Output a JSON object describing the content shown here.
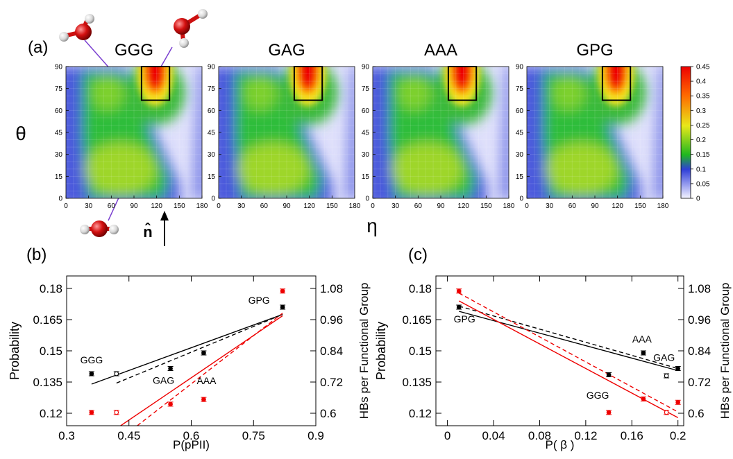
{
  "figure": {
    "panel_labels": [
      "(a)",
      "(b)",
      "(c)"
    ],
    "shared_y_label": "θ",
    "shared_x_label": "η",
    "vector_label": "n̂",
    "colormap_colors": [
      "#f4f4ff",
      "#2f3fd6",
      "#1fb81f",
      "#e8e81a",
      "#ff6a00",
      "#ee0000"
    ]
  },
  "chart_data": [
    {
      "type": "heatmap",
      "panel": "(a)",
      "title": "GGG",
      "x_ticks": [
        "0",
        "30",
        "60",
        "90",
        "120",
        "150",
        "180"
      ],
      "y_ticks": [
        "0",
        "15",
        "30",
        "45",
        "60",
        "75",
        "90"
      ],
      "xlim": [
        0,
        180
      ],
      "ylim": [
        0,
        90
      ],
      "highlight_box": {
        "x": [
          100,
          137
        ],
        "y": [
          67,
          90
        ]
      },
      "peak": {
        "x": 118,
        "y": 87,
        "value": 0.45
      }
    },
    {
      "type": "heatmap",
      "panel": "(a)",
      "title": "GAG",
      "x_ticks": [
        "0",
        "30",
        "60",
        "90",
        "120",
        "150",
        "180"
      ],
      "y_ticks": [
        "0",
        "15",
        "30",
        "45",
        "60",
        "75",
        "90"
      ],
      "xlim": [
        0,
        180
      ],
      "ylim": [
        0,
        90
      ],
      "highlight_box": {
        "x": [
          100,
          137
        ],
        "y": [
          67,
          90
        ]
      },
      "peak": {
        "x": 118,
        "y": 87,
        "value": 0.45
      }
    },
    {
      "type": "heatmap",
      "panel": "(a)",
      "title": "AAA",
      "x_ticks": [
        "0",
        "30",
        "60",
        "90",
        "120",
        "150",
        "180"
      ],
      "y_ticks": [
        "0",
        "15",
        "30",
        "45",
        "60",
        "75",
        "90"
      ],
      "xlim": [
        0,
        180
      ],
      "ylim": [
        0,
        90
      ],
      "highlight_box": {
        "x": [
          100,
          137
        ],
        "y": [
          67,
          90
        ]
      },
      "peak": {
        "x": 118,
        "y": 87,
        "value": 0.45
      }
    },
    {
      "type": "heatmap",
      "panel": "(a)",
      "title": "GPG",
      "x_ticks": [
        "0",
        "30",
        "60",
        "90",
        "120",
        "150",
        "180"
      ],
      "y_ticks": [
        "0",
        "15",
        "30",
        "45",
        "60",
        "75",
        "90"
      ],
      "xlim": [
        0,
        180
      ],
      "ylim": [
        0,
        90
      ],
      "highlight_box": {
        "x": [
          100,
          137
        ],
        "y": [
          67,
          90
        ]
      },
      "peak": {
        "x": 118,
        "y": 87,
        "value": 0.45
      }
    },
    {
      "type": "colorbar",
      "ticks": [
        "0",
        "0.05",
        "0.1",
        "0.15",
        "0.2",
        "0.25",
        "0.3",
        "0.35",
        "0.4",
        "0.45"
      ],
      "range": [
        0,
        0.45
      ]
    },
    {
      "type": "scatter",
      "panel": "(b)",
      "xlabel": "P(pPII)",
      "ylabel": "Probability",
      "y2label": "HBs per Functional Group",
      "xlim": [
        0.3,
        0.9
      ],
      "ylim": [
        0.114,
        0.186
      ],
      "y2lim": [
        0.552,
        1.128
      ],
      "x_ticks": [
        "0.3",
        "0.45",
        "0.6",
        "0.75",
        "0.9"
      ],
      "y_ticks": [
        "0.12",
        "0.135",
        "0.15",
        "0.165",
        "0.18"
      ],
      "y2_ticks": [
        "0.6",
        "0.72",
        "0.84",
        "0.96",
        "1.08"
      ],
      "series": [
        {
          "axis": "left",
          "color": "#000000",
          "filled": true,
          "points": [
            {
              "x": 0.36,
              "y": 0.139,
              "label": "GGG"
            },
            {
              "x": 0.55,
              "y": 0.1415,
              "label": "GAG"
            },
            {
              "x": 0.63,
              "y": 0.149,
              "label": ""
            },
            {
              "x": 0.82,
              "y": 0.171,
              "label": "GPG"
            }
          ]
        },
        {
          "axis": "left",
          "color": "#000000",
          "filled": false,
          "points": [
            {
              "x": 0.42,
              "y": 0.139
            }
          ]
        },
        {
          "axis": "right",
          "color": "#ee0000",
          "filled": true,
          "points": [
            {
              "x": 0.36,
              "y": 0.603
            },
            {
              "x": 0.55,
              "y": 0.635
            },
            {
              "x": 0.63,
              "y": 0.653,
              "label": "AAA"
            },
            {
              "x": 0.82,
              "y": 1.07
            }
          ]
        },
        {
          "axis": "right",
          "color": "#ee0000",
          "filled": false,
          "points": [
            {
              "x": 0.42,
              "y": 0.603
            }
          ]
        }
      ],
      "fit_lines": [
        {
          "axis": "left",
          "color": "#000000",
          "dash": false,
          "x": [
            0.36,
            0.82
          ],
          "y": [
            0.134,
            0.1675
          ]
        },
        {
          "axis": "left",
          "color": "#000000",
          "dash": true,
          "x": [
            0.42,
            0.82
          ],
          "y": [
            0.1345,
            0.1675
          ]
        },
        {
          "axis": "right",
          "color": "#ee0000",
          "dash": false,
          "x": [
            0.43,
            0.82
          ],
          "y": [
            0.552,
            0.975
          ]
        },
        {
          "axis": "right",
          "color": "#ee0000",
          "dash": true,
          "x": [
            0.47,
            0.82
          ],
          "y": [
            0.552,
            0.985
          ]
        }
      ]
    },
    {
      "type": "scatter",
      "panel": "(c)",
      "xlabel": "P( β )",
      "ylabel": "Probability",
      "y2label": "HBs per Functional Group",
      "xlim": [
        -0.01,
        0.205
      ],
      "ylim": [
        0.114,
        0.186
      ],
      "y2lim": [
        0.552,
        1.128
      ],
      "x_ticks": [
        "0",
        "0.04",
        "0.08",
        "0.12",
        "0.16",
        "0.2"
      ],
      "y_ticks": [
        "0.12",
        "0.135",
        "0.15",
        "0.165",
        "0.18"
      ],
      "y2_ticks": [
        "0.6",
        "0.72",
        "0.84",
        "0.96",
        "1.08"
      ],
      "series": [
        {
          "axis": "left",
          "color": "#000000",
          "filled": true,
          "points": [
            {
              "x": 0.01,
              "y": 0.171,
              "label": "GPG"
            },
            {
              "x": 0.14,
              "y": 0.1385,
              "label": ""
            },
            {
              "x": 0.17,
              "y": 0.149,
              "label": "AAA"
            },
            {
              "x": 0.2,
              "y": 0.1415,
              "label": "GAG"
            }
          ]
        },
        {
          "axis": "left",
          "color": "#000000",
          "filled": false,
          "points": [
            {
              "x": 0.19,
              "y": 0.138
            }
          ]
        },
        {
          "axis": "right",
          "color": "#ee0000",
          "filled": true,
          "points": [
            {
              "x": 0.01,
              "y": 1.07
            },
            {
              "x": 0.14,
              "y": 0.603,
              "label": "GGG"
            },
            {
              "x": 0.17,
              "y": 0.655
            },
            {
              "x": 0.2,
              "y": 0.642
            }
          ]
        },
        {
          "axis": "right",
          "color": "#ee0000",
          "filled": false,
          "points": [
            {
              "x": 0.19,
              "y": 0.603
            }
          ]
        }
      ],
      "fit_lines": [
        {
          "axis": "left",
          "color": "#000000",
          "dash": false,
          "x": [
            0.01,
            0.2
          ],
          "y": [
            0.169,
            0.1405
          ]
        },
        {
          "axis": "left",
          "color": "#000000",
          "dash": true,
          "x": [
            0.01,
            0.2
          ],
          "y": [
            0.1715,
            0.1415
          ]
        },
        {
          "axis": "right",
          "color": "#ee0000",
          "dash": false,
          "x": [
            0.01,
            0.2
          ],
          "y": [
            1.032,
            0.583
          ]
        },
        {
          "axis": "right",
          "color": "#ee0000",
          "dash": true,
          "x": [
            0.01,
            0.2
          ],
          "y": [
            1.062,
            0.605
          ]
        }
      ]
    }
  ]
}
